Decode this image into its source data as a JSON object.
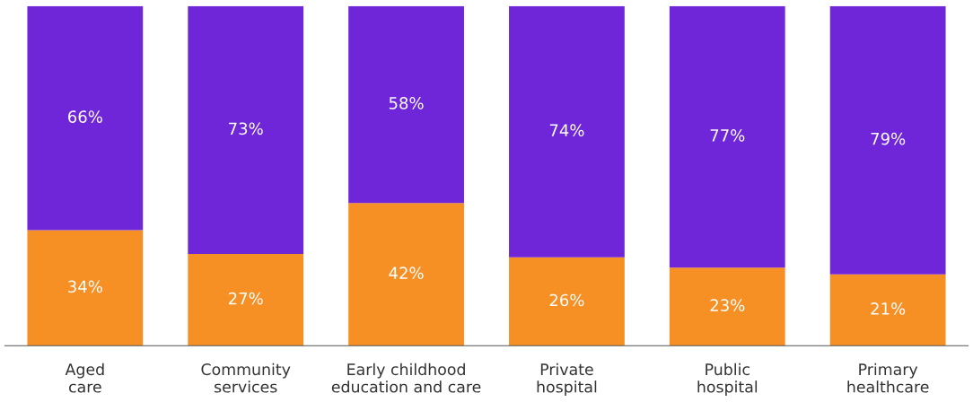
{
  "chart_data": {
    "type": "bar",
    "stacked": true,
    "categories": [
      "Aged\ncare",
      "Community\nservices",
      "Early childhood\neducation and care",
      "Private\nhospital",
      "Public\nhospital",
      "Primary\nhealthcare"
    ],
    "series": [
      {
        "color": "#f68f24",
        "values": [
          34,
          27,
          42,
          26,
          23,
          21
        ],
        "value_labels": [
          "34%",
          "27%",
          "42%",
          "26%",
          "23%",
          "21%"
        ]
      },
      {
        "color": "#6f26d9",
        "values": [
          66,
          73,
          58,
          74,
          77,
          79
        ],
        "value_labels": [
          "66%",
          "73%",
          "58%",
          "74%",
          "77%",
          "79%"
        ]
      }
    ]
  }
}
